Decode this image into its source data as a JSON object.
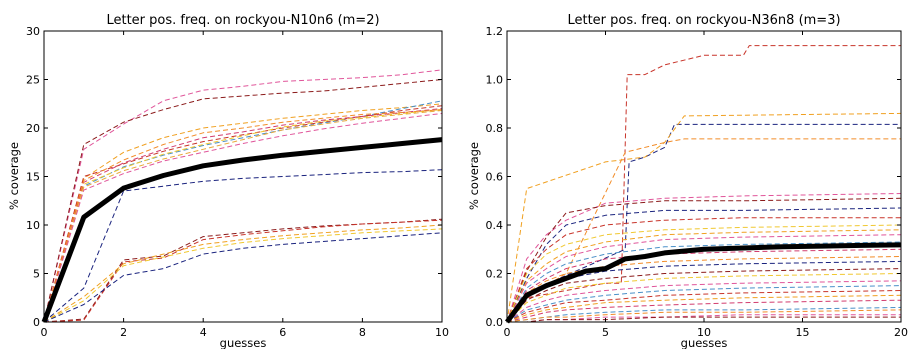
{
  "chart_data": [
    {
      "type": "line",
      "title": "Letter pos. freq. on rockyou-N10n6 (m=2)",
      "xlabel": "guesses",
      "ylabel": "% coverage",
      "xlim": [
        0,
        10
      ],
      "ylim": [
        0,
        30
      ],
      "xticks": [
        "0",
        "2",
        "4",
        "6",
        "8",
        "10"
      ],
      "yticks": [
        "0",
        "5",
        "10",
        "15",
        "20",
        "25",
        "30"
      ],
      "grid": false,
      "main_series": {
        "color": "#000000",
        "x": [
          0,
          1,
          2,
          3,
          4,
          5,
          6,
          7,
          8,
          9,
          10
        ],
        "y": [
          0,
          10.8,
          13.8,
          15.1,
          16.1,
          16.7,
          17.2,
          17.6,
          18.0,
          18.4,
          18.8
        ]
      },
      "dashed_series": [
        {
          "color": "#e0559a",
          "x": [
            0,
            1,
            2,
            3,
            4,
            5,
            6,
            7,
            8,
            9,
            10
          ],
          "y": [
            0,
            17.8,
            20.4,
            22.8,
            23.9,
            24.3,
            24.8,
            25.0,
            25.2,
            25.5,
            26.0
          ]
        },
        {
          "color": "#8b1a1a",
          "x": [
            0,
            1,
            2,
            3,
            4,
            5,
            6,
            7,
            8,
            9,
            10
          ],
          "y": [
            0,
            18.3,
            20.6,
            21.9,
            23.0,
            23.3,
            23.6,
            23.8,
            24.2,
            24.6,
            25.0
          ]
        },
        {
          "color": "#f0a020",
          "x": [
            0,
            1,
            2,
            3,
            4,
            5,
            6,
            7,
            8,
            9,
            10
          ],
          "y": [
            0,
            14.8,
            17.5,
            19.0,
            20.0,
            20.5,
            21.0,
            21.4,
            21.8,
            22.1,
            22.5
          ]
        },
        {
          "color": "#4a90c8",
          "x": [
            0,
            1,
            2,
            3,
            4,
            5,
            6,
            7,
            8,
            9,
            10
          ],
          "y": [
            0,
            14.0,
            16.0,
            17.2,
            18.2,
            19.0,
            19.8,
            20.5,
            21.2,
            22.0,
            22.8
          ]
        },
        {
          "color": "#c8342a",
          "x": [
            0,
            1,
            2,
            3,
            4,
            5,
            6,
            7,
            8,
            9,
            10
          ],
          "y": [
            0,
            15.0,
            16.3,
            17.6,
            18.6,
            19.3,
            20.0,
            20.6,
            21.2,
            21.8,
            22.3
          ]
        },
        {
          "color": "#e8a93c",
          "x": [
            0,
            1,
            2,
            3,
            4,
            5,
            6,
            7,
            8,
            9,
            10
          ],
          "y": [
            0,
            13.9,
            15.6,
            16.8,
            17.8,
            18.8,
            19.8,
            20.4,
            21.0,
            21.4,
            21.8
          ]
        },
        {
          "color": "#f0c830",
          "x": [
            0,
            1,
            2,
            3,
            4,
            5,
            6,
            7,
            8,
            9,
            10
          ],
          "y": [
            0,
            14.2,
            15.9,
            17.3,
            18.3,
            19.2,
            20.1,
            20.7,
            21.1,
            21.5,
            21.9
          ]
        },
        {
          "color": "#e0559a",
          "x": [
            0,
            1,
            2,
            3,
            4,
            5,
            6,
            7,
            8,
            9,
            10
          ],
          "y": [
            0,
            13.6,
            15.3,
            16.6,
            17.5,
            18.4,
            19.2,
            19.9,
            20.5,
            21.0,
            21.5
          ]
        },
        {
          "color": "#d23c6e",
          "x": [
            0,
            1,
            2,
            3,
            4,
            5,
            6,
            7,
            8,
            9,
            10
          ],
          "y": [
            0,
            14.4,
            16.4,
            17.8,
            19.0,
            19.6,
            20.3,
            20.8,
            21.2,
            21.6,
            22.0
          ]
        },
        {
          "color": "#f28c28",
          "x": [
            0,
            1,
            2,
            3,
            4,
            5,
            6,
            7,
            8,
            9,
            10
          ],
          "y": [
            0,
            14.6,
            16.7,
            18.3,
            19.5,
            20.0,
            20.6,
            21.0,
            21.4,
            21.6,
            21.9
          ]
        },
        {
          "color": "#1a237e",
          "x": [
            0,
            1,
            2,
            3,
            4,
            5,
            6,
            7,
            8,
            9,
            10
          ],
          "y": [
            0,
            3.5,
            13.5,
            14.0,
            14.5,
            14.8,
            15.0,
            15.2,
            15.4,
            15.5,
            15.7
          ]
        },
        {
          "color": "#8b1a1a",
          "x": [
            0,
            1,
            2,
            3,
            4,
            5,
            6,
            7,
            8,
            9,
            10
          ],
          "y": [
            0,
            0.3,
            6.4,
            6.8,
            8.8,
            9.2,
            9.6,
            9.9,
            10.1,
            10.3,
            10.6
          ]
        },
        {
          "color": "#c8342a",
          "x": [
            0,
            1,
            2,
            3,
            4,
            5,
            6,
            7,
            8,
            9,
            10
          ],
          "y": [
            0,
            0.2,
            6.2,
            6.6,
            8.5,
            9.0,
            9.4,
            9.8,
            10.1,
            10.3,
            10.5
          ]
        },
        {
          "color": "#f0a020",
          "x": [
            0,
            1,
            2,
            3,
            4,
            5,
            6,
            7,
            8,
            9,
            10
          ],
          "y": [
            0,
            2.6,
            6.0,
            7.0,
            8.0,
            8.5,
            8.9,
            9.2,
            9.5,
            9.7,
            10.0
          ]
        },
        {
          "color": "#f0c830",
          "x": [
            0,
            1,
            2,
            3,
            4,
            5,
            6,
            7,
            8,
            9,
            10
          ],
          "y": [
            0,
            2.2,
            5.8,
            6.7,
            7.6,
            8.2,
            8.6,
            8.9,
            9.2,
            9.4,
            9.6
          ]
        },
        {
          "color": "#1a237e",
          "x": [
            0,
            1,
            2,
            3,
            4,
            5,
            6,
            7,
            8,
            9,
            10
          ],
          "y": [
            0,
            1.8,
            4.8,
            5.5,
            7.0,
            7.6,
            8.0,
            8.3,
            8.6,
            8.9,
            9.2
          ]
        }
      ]
    },
    {
      "type": "line",
      "title": "Letter pos. freq. on rockyou-N36n8 (m=3)",
      "xlabel": "guesses",
      "ylabel": "% coverage",
      "xlim": [
        0,
        20
      ],
      "ylim": [
        0,
        1.2
      ],
      "xticks": [
        "0",
        "5",
        "10",
        "15",
        "20"
      ],
      "yticks": [
        "0.0",
        "0.2",
        "0.4",
        "0.6",
        "0.8",
        "1.0",
        "1.2"
      ],
      "grid": false,
      "main_series": {
        "color": "#000000",
        "x": [
          0,
          1,
          2,
          3,
          4,
          5,
          6,
          7,
          8,
          10,
          12,
          14,
          16,
          18,
          20
        ],
        "y": [
          0,
          0.11,
          0.15,
          0.18,
          0.21,
          0.22,
          0.26,
          0.27,
          0.285,
          0.3,
          0.305,
          0.31,
          0.313,
          0.316,
          0.318
        ]
      },
      "dashed_series": [
        {
          "color": "#c8342a",
          "x": [
            0,
            1,
            5,
            5.8,
            6.1,
            7,
            8,
            10,
            12,
            12.3,
            20
          ],
          "y": [
            0,
            0.1,
            0.16,
            0.16,
            1.02,
            1.02,
            1.06,
            1.1,
            1.1,
            1.14,
            1.14
          ]
        },
        {
          "color": "#1a237e",
          "x": [
            0,
            1,
            6.0,
            6.2,
            7,
            8,
            8.5,
            20
          ],
          "y": [
            0,
            0.12,
            0.3,
            0.66,
            0.68,
            0.72,
            0.815,
            0.815
          ]
        },
        {
          "color": "#f0a020",
          "x": [
            0,
            1,
            5,
            7,
            8,
            9,
            20
          ],
          "y": [
            0,
            0.55,
            0.66,
            0.68,
            0.74,
            0.85,
            0.86
          ]
        },
        {
          "color": "#f28c28",
          "x": [
            0,
            1,
            3,
            6,
            8,
            9,
            20
          ],
          "y": [
            0,
            0.1,
            0.2,
            0.7,
            0.74,
            0.755,
            0.755
          ]
        },
        {
          "color": "#e0559a",
          "x": [
            0,
            1,
            2,
            3,
            5,
            8,
            12,
            20
          ],
          "y": [
            0,
            0.26,
            0.36,
            0.42,
            0.49,
            0.51,
            0.52,
            0.53
          ]
        },
        {
          "color": "#8b1a1a",
          "x": [
            0,
            1,
            2,
            3,
            5,
            8,
            12,
            20
          ],
          "y": [
            0,
            0.21,
            0.35,
            0.45,
            0.48,
            0.5,
            0.5,
            0.51
          ]
        },
        {
          "color": "#1a237e",
          "x": [
            0,
            1,
            2,
            3,
            5,
            8,
            12,
            20
          ],
          "y": [
            0,
            0.18,
            0.32,
            0.4,
            0.44,
            0.46,
            0.46,
            0.47
          ]
        },
        {
          "color": "#c8342a",
          "x": [
            0,
            1,
            2,
            3,
            5,
            8,
            12,
            20
          ],
          "y": [
            0,
            0.22,
            0.3,
            0.36,
            0.4,
            0.42,
            0.43,
            0.43
          ]
        },
        {
          "color": "#f0c830",
          "x": [
            0,
            1,
            2,
            3,
            5,
            8,
            12,
            20
          ],
          "y": [
            0,
            0.2,
            0.28,
            0.32,
            0.36,
            0.38,
            0.39,
            0.4
          ]
        },
        {
          "color": "#f0a020",
          "x": [
            0,
            1,
            2,
            3,
            5,
            8,
            12,
            20
          ],
          "y": [
            0,
            0.17,
            0.24,
            0.29,
            0.33,
            0.36,
            0.37,
            0.38
          ]
        },
        {
          "color": "#e0559a",
          "x": [
            0,
            1,
            2,
            3,
            5,
            8,
            12,
            20
          ],
          "y": [
            0,
            0.16,
            0.22,
            0.27,
            0.31,
            0.34,
            0.35,
            0.36
          ]
        },
        {
          "color": "#4a90c8",
          "x": [
            0,
            1,
            2,
            3,
            5,
            8,
            12,
            20
          ],
          "y": [
            0,
            0.14,
            0.2,
            0.24,
            0.28,
            0.31,
            0.32,
            0.33
          ]
        },
        {
          "color": "#d23c6e",
          "x": [
            0,
            1,
            2,
            3,
            5,
            8,
            12,
            20
          ],
          "y": [
            0,
            0.13,
            0.18,
            0.22,
            0.26,
            0.28,
            0.29,
            0.3
          ]
        },
        {
          "color": "#f28c28",
          "x": [
            0,
            1,
            2,
            3,
            5,
            8,
            12,
            20
          ],
          "y": [
            0,
            0.12,
            0.17,
            0.2,
            0.23,
            0.25,
            0.26,
            0.27
          ]
        },
        {
          "color": "#1a237e",
          "x": [
            0,
            1,
            2,
            3,
            5,
            8,
            12,
            20
          ],
          "y": [
            0,
            0.1,
            0.15,
            0.18,
            0.21,
            0.23,
            0.24,
            0.25
          ]
        },
        {
          "color": "#8b1a1a",
          "x": [
            0,
            1,
            2,
            3,
            5,
            8,
            12,
            20
          ],
          "y": [
            0,
            0.09,
            0.13,
            0.16,
            0.18,
            0.2,
            0.21,
            0.22
          ]
        },
        {
          "color": "#f0c830",
          "x": [
            0,
            1,
            2,
            3,
            5,
            8,
            12,
            20
          ],
          "y": [
            0,
            0.08,
            0.11,
            0.14,
            0.16,
            0.18,
            0.19,
            0.2
          ]
        },
        {
          "color": "#e0559a",
          "x": [
            0,
            1,
            2,
            3,
            5,
            8,
            12,
            20
          ],
          "y": [
            0,
            0.06,
            0.09,
            0.11,
            0.13,
            0.15,
            0.16,
            0.17
          ]
        },
        {
          "color": "#4a90c8",
          "x": [
            0,
            1,
            2,
            3,
            5,
            8,
            12,
            20
          ],
          "y": [
            0,
            0.05,
            0.07,
            0.09,
            0.11,
            0.13,
            0.14,
            0.15
          ]
        },
        {
          "color": "#c8342a",
          "x": [
            0,
            1,
            2,
            3,
            5,
            8,
            12,
            20
          ],
          "y": [
            0,
            0.04,
            0.06,
            0.08,
            0.09,
            0.11,
            0.12,
            0.13
          ]
        },
        {
          "color": "#f0a020",
          "x": [
            0,
            1,
            2,
            3,
            5,
            8,
            12,
            20
          ],
          "y": [
            0,
            0.03,
            0.05,
            0.06,
            0.08,
            0.09,
            0.1,
            0.11
          ]
        },
        {
          "color": "#d23c6e",
          "x": [
            0,
            1,
            2,
            3,
            5,
            8,
            12,
            20
          ],
          "y": [
            0,
            0.02,
            0.04,
            0.05,
            0.06,
            0.07,
            0.08,
            0.09
          ]
        },
        {
          "color": "#4a90c8",
          "x": [
            0,
            1,
            2,
            3,
            5,
            8,
            12,
            20
          ],
          "y": [
            0,
            0.01,
            0.02,
            0.03,
            0.04,
            0.05,
            0.05,
            0.06
          ]
        },
        {
          "color": "#f28c28",
          "x": [
            0,
            1,
            2,
            3,
            5,
            8,
            12,
            20
          ],
          "y": [
            0,
            0.01,
            0.02,
            0.02,
            0.03,
            0.04,
            0.04,
            0.05
          ]
        },
        {
          "color": "#e0559a",
          "x": [
            0,
            1,
            2,
            3,
            5,
            8,
            12,
            20
          ],
          "y": [
            0,
            0.0,
            0.01,
            0.01,
            0.02,
            0.02,
            0.03,
            0.03
          ]
        },
        {
          "color": "#8b1a1a",
          "x": [
            0,
            1,
            2,
            3,
            5,
            8,
            12,
            20
          ],
          "y": [
            0,
            0.0,
            0.01,
            0.01,
            0.01,
            0.02,
            0.02,
            0.02
          ]
        }
      ]
    }
  ]
}
